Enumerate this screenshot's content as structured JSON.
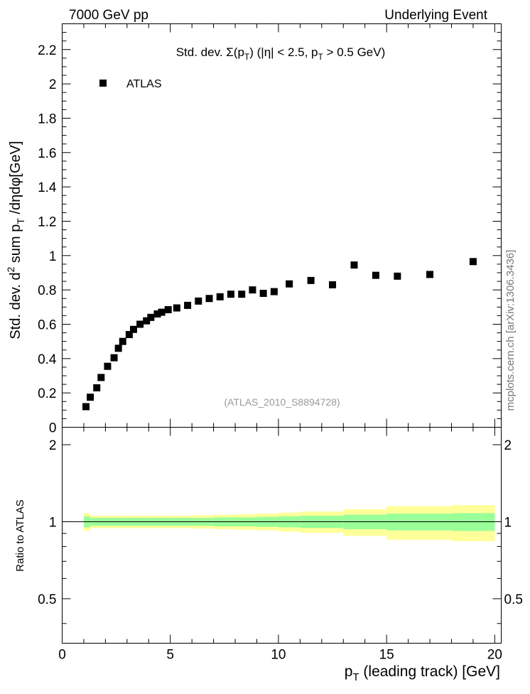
{
  "header": {
    "left": "7000 GeV pp",
    "right": "Underlying Event"
  },
  "plot_title": {
    "prefix": "Std. dev. ",
    "sigma": "Σ(p",
    "sub_t1": "T",
    "mid": ") (|η| < 2.5, p",
    "sub_t2": "T",
    "suffix": " > 0.5 GeV)"
  },
  "y_title": {
    "part1": "Std. dev. d",
    "sup": "2",
    "part2": " sum p",
    "sub": "T",
    "part3": " /dηdφ[GeV]"
  },
  "ratio_y_title": "Ratio to ATLAS",
  "x_title": {
    "p": "p",
    "sub": "T",
    "rest": " (leading track) [GeV]"
  },
  "watermark": "(ATLAS_2010_S8894728)",
  "side_label": "mcplots.cern.ch [arXiv:1306.3436]",
  "colors": {
    "marker": "#000000",
    "band_outer": "#ffff99",
    "band_inner": "#99ff99",
    "watermark": "#999999"
  },
  "chart_data": {
    "type": "scatter",
    "xlim": [
      0,
      20.3
    ],
    "ylim": [
      0,
      2.35
    ],
    "x_ticks": [
      "0",
      "5",
      "10",
      "15",
      "20"
    ],
    "y_ticks": [
      "0",
      "0.2",
      "0.4",
      "0.6",
      "0.8",
      "1",
      "1.2",
      "1.4",
      "1.6",
      "1.8",
      "2",
      "2.2"
    ],
    "legend": [
      {
        "name": "ATLAS",
        "marker": "square"
      }
    ],
    "series": [
      {
        "name": "ATLAS",
        "x": [
          1.1,
          1.3,
          1.6,
          1.8,
          2.1,
          2.4,
          2.6,
          2.8,
          3.1,
          3.3,
          3.6,
          3.9,
          4.1,
          4.4,
          4.6,
          4.9,
          5.3,
          5.8,
          6.3,
          6.8,
          7.3,
          7.8,
          8.3,
          8.8,
          9.3,
          9.8,
          10.5,
          11.5,
          12.5,
          13.5,
          14.5,
          15.5,
          17.0,
          19.0
        ],
        "y": [
          0.12,
          0.175,
          0.23,
          0.29,
          0.355,
          0.405,
          0.46,
          0.5,
          0.54,
          0.57,
          0.6,
          0.62,
          0.64,
          0.66,
          0.67,
          0.685,
          0.695,
          0.71,
          0.735,
          0.75,
          0.76,
          0.775,
          0.775,
          0.8,
          0.78,
          0.79,
          0.835,
          0.855,
          0.83,
          0.945,
          0.885,
          0.88,
          0.89,
          0.965
        ]
      }
    ],
    "ratio": {
      "ylabel": "Ratio to ATLAS",
      "ylim": [
        0.335,
        2.34
      ],
      "y_ticks": [
        "0.5",
        "1",
        "2"
      ],
      "reference": 1.0,
      "band_edges": [
        1.0,
        1.3,
        2.0,
        3.0,
        4.0,
        5.0,
        6.0,
        7.0,
        8.0,
        9.0,
        10.0,
        11.0,
        13.0,
        15.0,
        18.0,
        20.0
      ],
      "band_inner_halfwidth": [
        0.05,
        0.035,
        0.035,
        0.035,
        0.035,
        0.035,
        0.035,
        0.04,
        0.04,
        0.045,
        0.05,
        0.055,
        0.065,
        0.075,
        0.08
      ],
      "band_outer_halfwidth": [
        0.08,
        0.055,
        0.055,
        0.055,
        0.055,
        0.055,
        0.06,
        0.065,
        0.07,
        0.075,
        0.085,
        0.095,
        0.12,
        0.15,
        0.16
      ]
    }
  }
}
